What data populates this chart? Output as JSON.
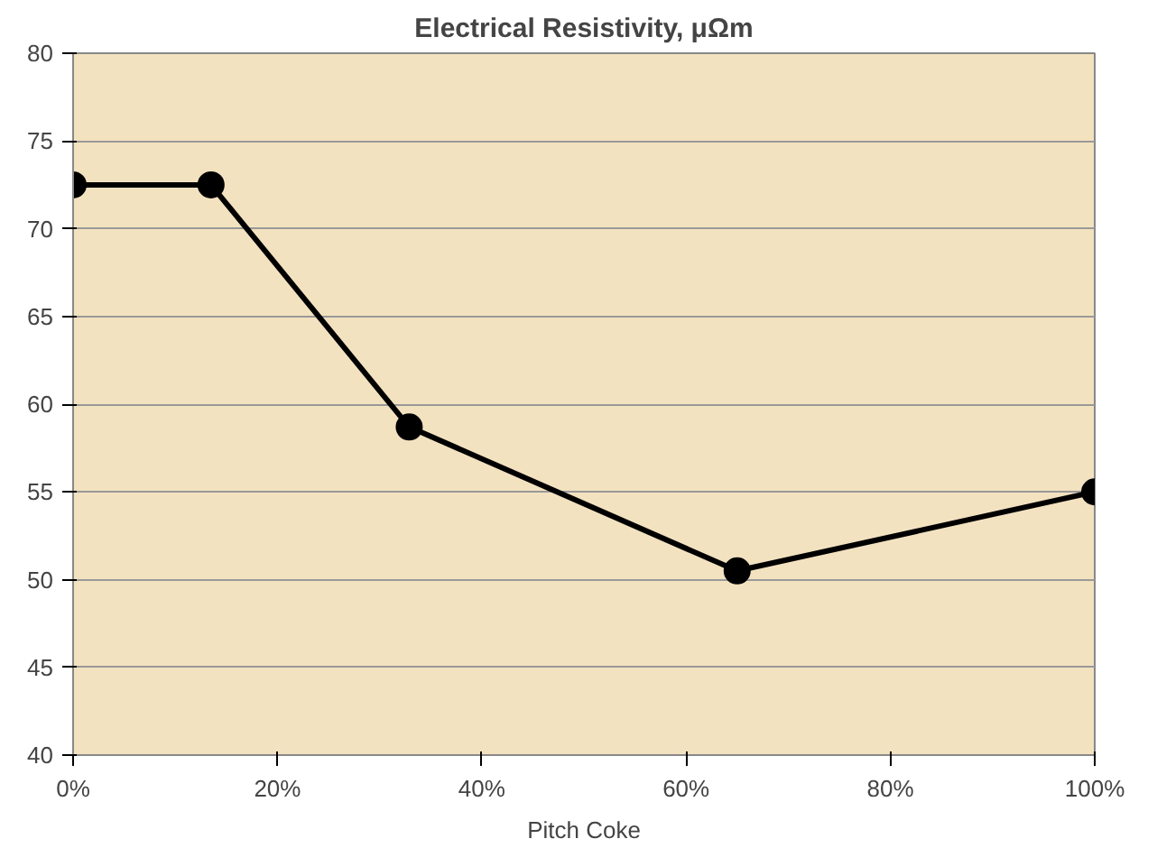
{
  "chart_data": {
    "type": "line",
    "title": "Electrical Resistivity, μΩm",
    "xlabel": "Pitch Coke",
    "x": [
      0,
      13.5,
      32.9,
      65,
      100
    ],
    "series": [
      {
        "color": "#000000",
        "values": [
          72.5,
          72.5,
          58.7,
          50.5,
          55.0
        ]
      }
    ],
    "xlim": [
      0,
      100
    ],
    "xticks": [
      {
        "value": 0,
        "label": "0%"
      },
      {
        "value": 20,
        "label": "20%"
      },
      {
        "value": 40,
        "label": "40%"
      },
      {
        "value": 60,
        "label": "60%"
      },
      {
        "value": 80,
        "label": "80%"
      },
      {
        "value": 100,
        "label": "100%"
      }
    ],
    "ylim": [
      40,
      80
    ],
    "yticks": [
      40,
      45,
      50,
      55,
      60,
      65,
      70,
      75,
      80
    ],
    "grid": "y",
    "marker": "circle",
    "line_style": "solid"
  }
}
